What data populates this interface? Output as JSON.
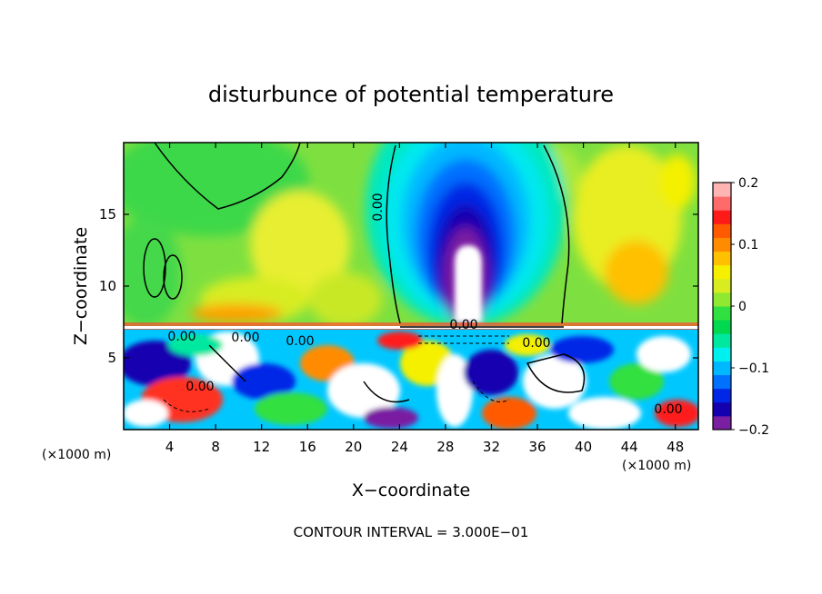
{
  "chart_data": {
    "type": "heatmap",
    "title": "disturbunce of potential temperature",
    "xlabel": "X−coordinate",
    "ylabel": "Z−coordinate",
    "x_unit_label": "(×1000 m)",
    "y_unit_label": "(×1000 m)",
    "footer": "CONTOUR INTERVAL = 3.000E−01",
    "xlim": [
      0,
      50
    ],
    "ylim": [
      0,
      20
    ],
    "x_ticks": [
      4,
      8,
      12,
      16,
      20,
      24,
      28,
      32,
      36,
      40,
      44,
      48
    ],
    "x_tick_labels": [
      "4",
      "8",
      "12",
      "16",
      "20",
      "24",
      "28",
      "32",
      "36",
      "40",
      "44",
      "48"
    ],
    "y_ticks": [
      5,
      10,
      15
    ],
    "y_tick_labels": [
      "5",
      "10",
      "15"
    ],
    "colorbar": {
      "range": [
        -0.2,
        0.2
      ],
      "ticks": [
        0.2,
        0.1,
        0,
        -0.1,
        -0.2
      ],
      "tick_labels": [
        "0.2",
        "0.1",
        "0",
        "−0.1",
        "−0.2"
      ],
      "colors": [
        "#7a1fa2",
        "#1500b0",
        "#0026e6",
        "#0070ff",
        "#00b8ff",
        "#00f0f0",
        "#00e8a0",
        "#00d850",
        "#30e040",
        "#90e830",
        "#d8ec20",
        "#f4f000",
        "#ffc000",
        "#ff8c00",
        "#ff5a00",
        "#ff1a1a",
        "#ff6a6a",
        "#ffb4b4"
      ]
    },
    "contour_labels": [
      "0.00",
      "0.00",
      "0.00",
      "0.00",
      "0.00",
      "0.00",
      "0.00",
      "0.00"
    ],
    "field_description": "Warm (yellow/orange) upper layer above z≈7.3 with a cold (blue→purple) plume centered near x≈30 reaching z≈15; turbulent mixed layer below z≈7.3 with values exceeding the ±0.2 color range (white)."
  }
}
